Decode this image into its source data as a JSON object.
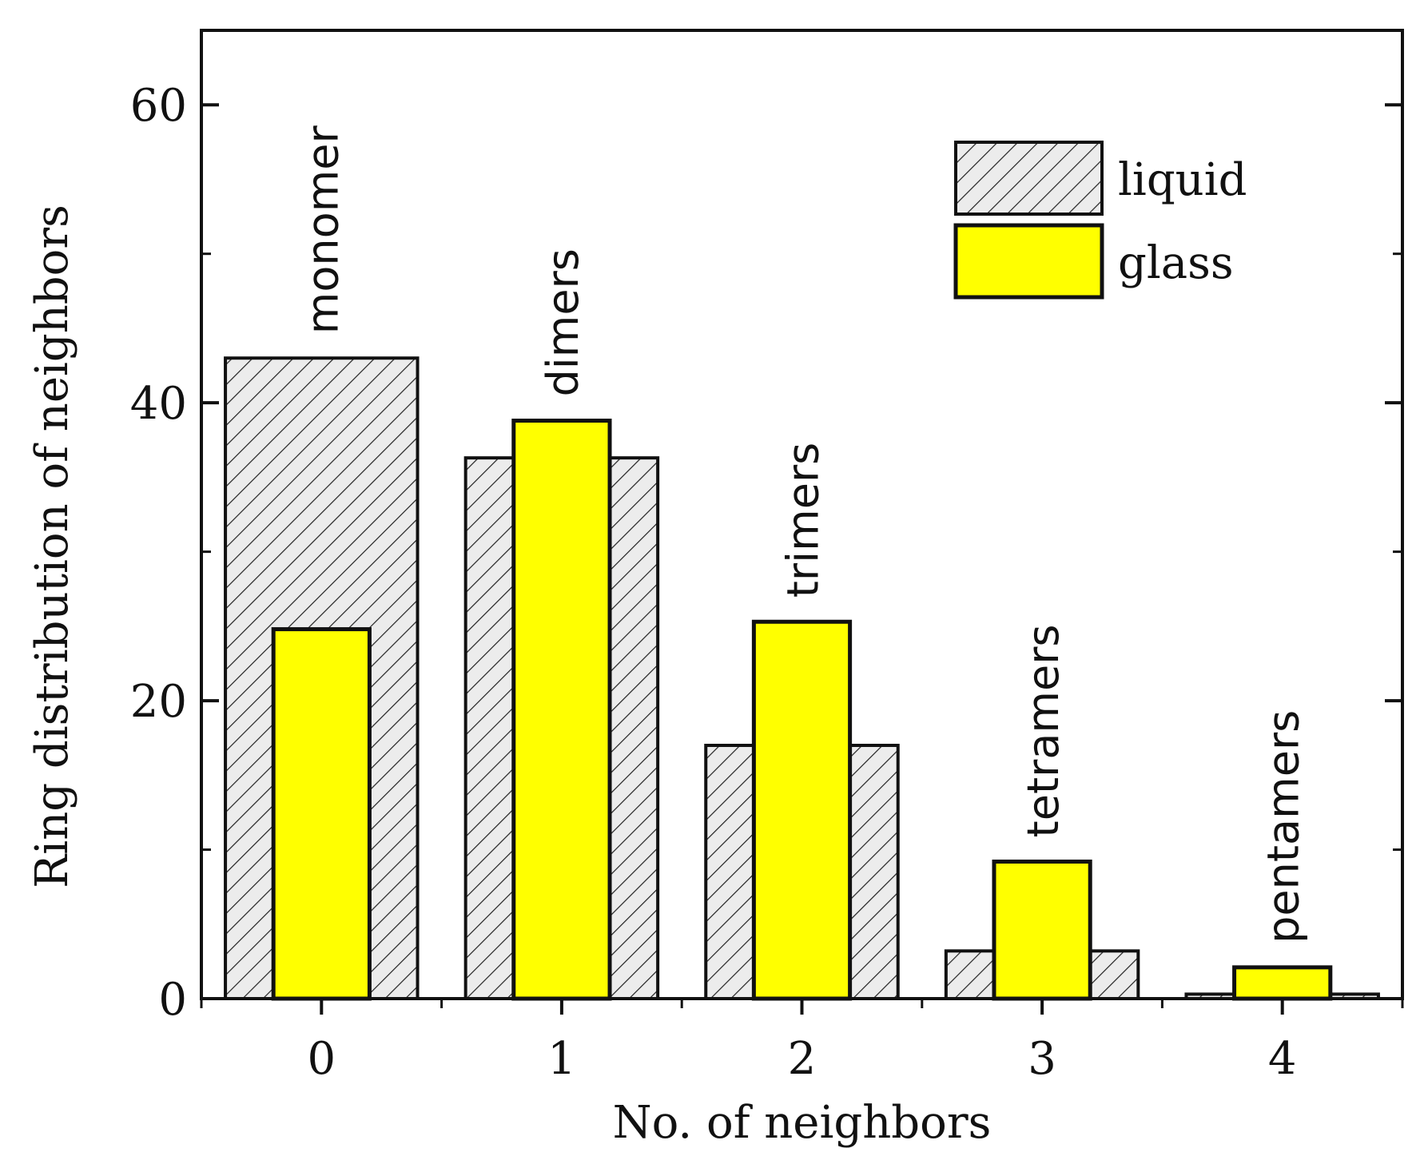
{
  "chart_data": {
    "type": "bar",
    "xlabel": "No. of neighbors",
    "ylabel": "Ring distribution of neighbors",
    "categories": [
      "0",
      "1",
      "2",
      "3",
      "4"
    ],
    "xlim": [
      -0.5,
      4.5
    ],
    "ylim": [
      0,
      65
    ],
    "yticks": [
      0,
      20,
      40,
      60
    ],
    "yticks_display": [
      "0",
      "20",
      "40",
      "60"
    ],
    "series": [
      {
        "name": "liquid",
        "values": [
          43,
          36.3,
          17,
          3.2,
          0.3
        ],
        "fill": "hatch",
        "color": "#e6e6e6"
      },
      {
        "name": "glass",
        "values": [
          24.8,
          38.8,
          25.3,
          9.2,
          2.1
        ],
        "fill": "solid",
        "color": "#ffff00"
      }
    ],
    "annotations": [
      "monomer",
      "dimers",
      "trimers",
      "tetramers",
      "pentamers"
    ],
    "legend": {
      "position": "top-right",
      "entries": [
        "liquid",
        "glass"
      ]
    },
    "grid": false
  }
}
